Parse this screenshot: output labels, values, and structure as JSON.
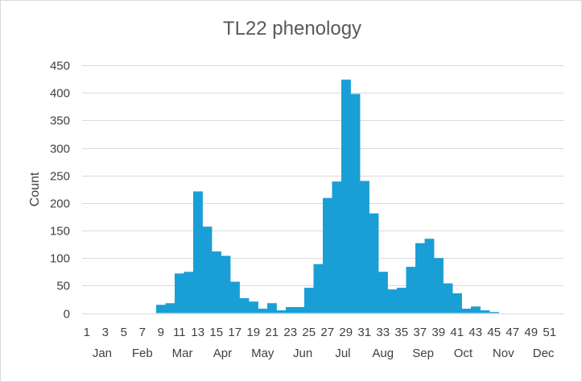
{
  "chart_data": {
    "type": "bar",
    "title": "TL22 phenology",
    "ylabel": "Count",
    "xlabel": "",
    "ylim": [
      0,
      450
    ],
    "yticks": [
      0,
      50,
      100,
      150,
      200,
      250,
      300,
      350,
      400,
      450
    ],
    "grid": true,
    "legend": "none",
    "bar_color": "#1a9ed6",
    "grid_color": "#d9d9d9",
    "categories": [
      1,
      2,
      3,
      4,
      5,
      6,
      7,
      8,
      9,
      10,
      11,
      12,
      13,
      14,
      15,
      16,
      17,
      18,
      19,
      20,
      21,
      22,
      23,
      24,
      25,
      26,
      27,
      28,
      29,
      30,
      31,
      32,
      33,
      34,
      35,
      36,
      37,
      38,
      39,
      40,
      41,
      42,
      43,
      44,
      45,
      46,
      47,
      48,
      49,
      50,
      51,
      52
    ],
    "category_tick_labels": [
      "1",
      "3",
      "5",
      "7",
      "9",
      "11",
      "13",
      "15",
      "17",
      "19",
      "21",
      "23",
      "25",
      "27",
      "29",
      "31",
      "33",
      "35",
      "37",
      "39",
      "41",
      "43",
      "45",
      "47",
      "49",
      "51"
    ],
    "values": [
      0,
      0,
      0,
      0,
      0,
      0,
      0,
      0,
      15,
      18,
      72,
      75,
      221,
      157,
      112,
      104,
      57,
      27,
      21,
      8,
      18,
      5,
      11,
      11,
      46,
      89,
      209,
      239,
      424,
      398,
      240,
      181,
      75,
      43,
      46,
      84,
      127,
      135,
      100,
      54,
      36,
      8,
      12,
      5,
      2,
      0,
      0,
      0,
      0,
      0,
      0,
      0
    ],
    "months": [
      "Jan",
      "Feb",
      "Mar",
      "Apr",
      "May",
      "Jun",
      "Jul",
      "Aug",
      "Sep",
      "Oct",
      "Nov",
      "Dec"
    ]
  }
}
